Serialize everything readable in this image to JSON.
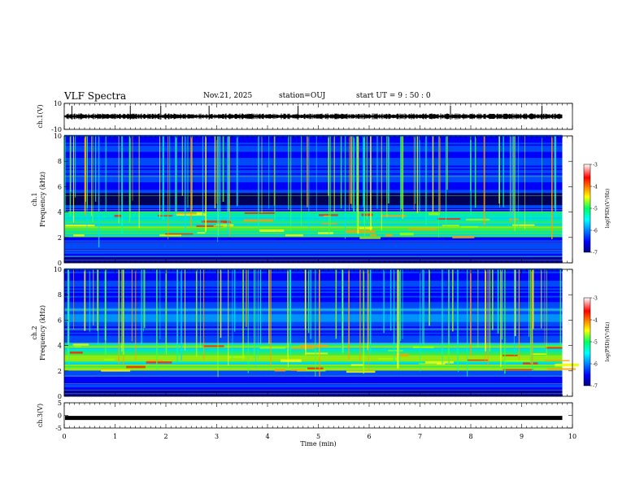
{
  "header": {
    "title": "VLF Spectra",
    "date": "Nov.21, 2025",
    "station": "station=OUJ",
    "start": "start UT =  9 : 50 : 0"
  },
  "chart_data": [
    {
      "type": "line",
      "panel": "ch1-waveform",
      "ylabel": "ch.1(V)",
      "ylim": [
        -10,
        10
      ],
      "yticks": [
        "10",
        "-10"
      ],
      "x_unit": "min",
      "xlim": [
        0,
        10
      ],
      "data_end": 9.8,
      "level": 0.0,
      "spikes_at": [
        0.15,
        1.3,
        1.9,
        2.85,
        4.6,
        7.6,
        9.4
      ],
      "color": "#000000"
    },
    {
      "type": "heatmap",
      "panel": "ch1-spectrogram",
      "ylabel_top": "ch.1",
      "ylabel": "Frequency (kHz)",
      "ylim": [
        0,
        10
      ],
      "yticks": [
        "0",
        "2",
        "4",
        "6",
        "8",
        "10"
      ],
      "xlim": [
        0,
        10
      ],
      "data_end": 9.8,
      "band_khz": [
        2.0,
        4.0
      ],
      "colorbar": {
        "label": "log(PSD)(V²/Hz)",
        "range": [
          -7,
          -3
        ],
        "ticks": [
          "-3",
          "-4",
          "-5",
          "-6",
          "-7"
        ]
      }
    },
    {
      "type": "heatmap",
      "panel": "ch2-spectrogram",
      "ylabel_top": "ch.2",
      "ylabel": "Frequency (kHz)",
      "ylim": [
        0,
        10
      ],
      "yticks": [
        "0",
        "2",
        "4",
        "6",
        "8",
        "10"
      ],
      "xlim": [
        0,
        10
      ],
      "data_end": 9.8,
      "band_khz": [
        2.0,
        4.2
      ],
      "colorbar": {
        "label": "log(PSD)(V²/Hz)",
        "range": [
          -7,
          -3
        ],
        "ticks": [
          "-3",
          "-4",
          "-5",
          "-6",
          "-7"
        ]
      }
    },
    {
      "type": "line",
      "panel": "ch3-waveform",
      "ylabel": "ch.3(V)",
      "ylim": [
        -5,
        5
      ],
      "yticks": [
        "5",
        "0",
        "-5"
      ],
      "xlim": [
        0,
        10
      ],
      "data_end": 9.8,
      "level": -1.0,
      "color": "#000000"
    }
  ],
  "x_axis": {
    "label": "Time (min)",
    "ticks": [
      "0",
      "1",
      "2",
      "3",
      "4",
      "5",
      "6",
      "7",
      "8",
      "9",
      "10"
    ]
  }
}
